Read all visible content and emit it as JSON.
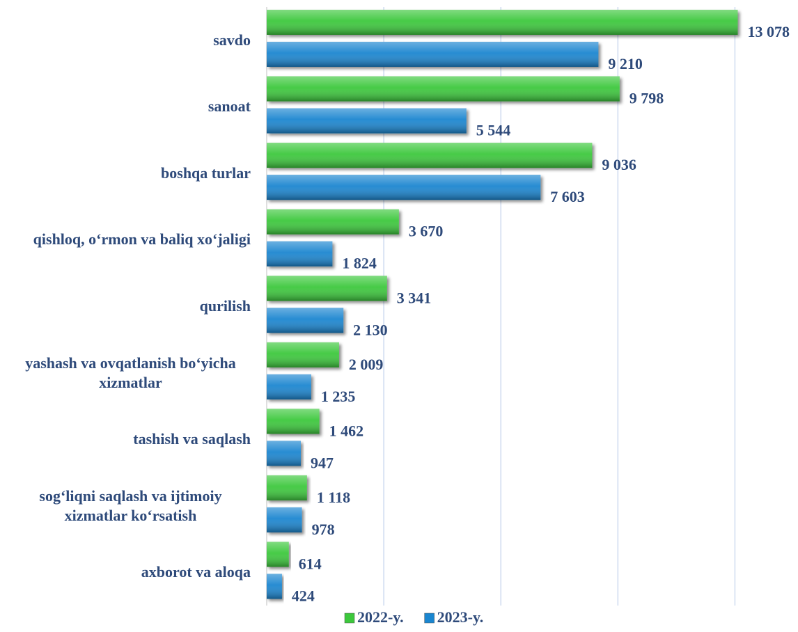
{
  "chart_data": {
    "type": "bar",
    "orientation": "horizontal",
    "categories": [
      "savdo",
      "sanoat",
      "boshqa turlar",
      "qishloq, o‘rmon va baliq xo‘jaligi",
      "qurilish",
      "yashash va ovqatlanish bo‘yicha xizmatlar",
      "tashish va saqlash",
      "sog‘liqni saqlash va ijtimoiy xizmatlar ko‘rsatish",
      "axborot va aloqa"
    ],
    "series": [
      {
        "name": "2022-y.",
        "color": "#3cc83c",
        "values": [
          13078,
          9798,
          9036,
          3670,
          3341,
          2009,
          1462,
          1118,
          614
        ],
        "value_labels": [
          "13 078",
          "9 798",
          "9 036",
          "3 670",
          "3 341",
          "2 009",
          "1 462",
          "1 118",
          "614"
        ]
      },
      {
        "name": "2023-y.",
        "color": "#1a86d0",
        "values": [
          9210,
          5544,
          7603,
          1824,
          2130,
          1235,
          947,
          978,
          424
        ],
        "value_labels": [
          "9 210",
          "5 544",
          "7 603",
          "1 824",
          "2 130",
          "1 235",
          "947",
          "978",
          "424"
        ]
      }
    ],
    "xlim": [
      0,
      14500
    ],
    "xticks": [
      0,
      3250,
      6500,
      9750,
      13000
    ],
    "grid": true,
    "legend": "bottom"
  }
}
